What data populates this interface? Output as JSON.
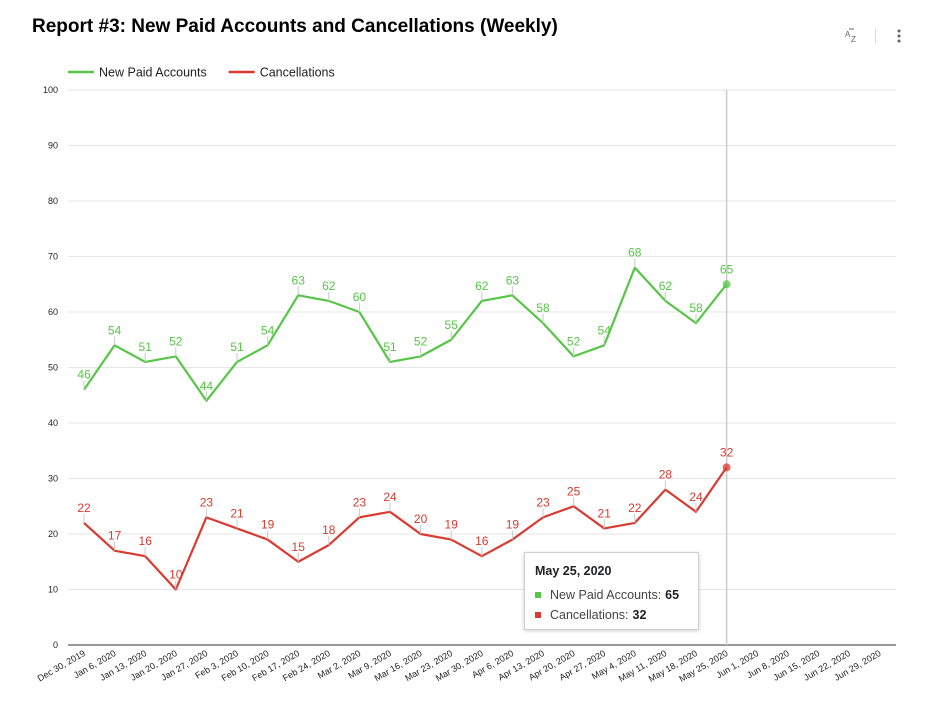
{
  "header": {
    "title": "Report #3: New Paid Accounts and Cancellations (Weekly)",
    "sort_icon": "sort-az-icon",
    "menu_icon": "more-vert-icon"
  },
  "colors": {
    "green": "#56c646",
    "red": "#d93b30",
    "grid": "#e6e6e6",
    "axis": "#333333",
    "cursor": "#cccccc"
  },
  "chart_data": {
    "type": "line",
    "title": "Report #3: New Paid Accounts and Cancellations (Weekly)",
    "legend_position": "top-left",
    "grid": true,
    "ylim": [
      0,
      100
    ],
    "yticks": [
      0,
      10,
      20,
      30,
      40,
      50,
      60,
      70,
      80,
      90,
      100
    ],
    "x": [
      "Dec 30, 2019",
      "Jan 6, 2020",
      "Jan 13, 2020",
      "Jan 20, 2020",
      "Jan 27, 2020",
      "Feb 3, 2020",
      "Feb 10, 2020",
      "Feb 17, 2020",
      "Feb 24, 2020",
      "Mar 2, 2020",
      "Mar 9, 2020",
      "Mar 16, 2020",
      "Mar 23, 2020",
      "Mar 30, 2020",
      "Apr 6, 2020",
      "Apr 13, 2020",
      "Apr 20, 2020",
      "Apr 27, 2020",
      "May 4, 2020",
      "May 11, 2020",
      "May 18, 2020",
      "May 25, 2020",
      "Jun 1, 2020",
      "Jun 8, 2020",
      "Jun 15, 2020",
      "Jun 22, 2020",
      "Jun 29, 2020"
    ],
    "series": [
      {
        "name": "New Paid Accounts",
        "color": "#56c646",
        "values": [
          46,
          54,
          51,
          52,
          44,
          51,
          54,
          63,
          62,
          60,
          51,
          52,
          55,
          62,
          63,
          58,
          52,
          54,
          68,
          62,
          58,
          65,
          null,
          null,
          null,
          null,
          null
        ]
      },
      {
        "name": "Cancellations",
        "color": "#d93b30",
        "values": [
          22,
          17,
          16,
          10,
          23,
          21,
          19,
          15,
          18,
          23,
          24,
          20,
          19,
          16,
          19,
          23,
          25,
          21,
          22,
          28,
          24,
          32,
          null,
          null,
          null,
          null,
          null
        ]
      }
    ],
    "highlight_index": 21
  },
  "tooltip": {
    "date": "May 25, 2020",
    "rows": [
      {
        "label": "New Paid Accounts:",
        "value": "65"
      },
      {
        "label": "Cancellations:",
        "value": "32"
      }
    ]
  }
}
